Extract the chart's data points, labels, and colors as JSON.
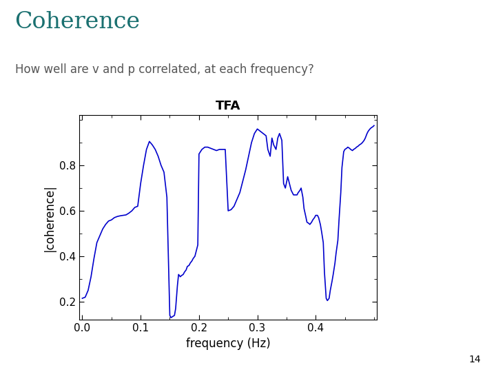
{
  "title": "Coherence",
  "subtitle": "How well are v and p correlated, at each frequency?",
  "plot_title": "TFA",
  "xlabel": "frequency (Hz)",
  "ylabel": "|coherence|",
  "title_color": "#1a7070",
  "subtitle_color": "#555555",
  "line_color": "#0000CC",
  "background_color": "#ffffff",
  "xlim": [
    -0.005,
    0.505
  ],
  "ylim": [
    0.12,
    1.02
  ],
  "xticks": [
    0,
    0.1,
    0.2,
    0.3,
    0.4
  ],
  "yticks": [
    0.2,
    0.4,
    0.6,
    0.8
  ],
  "page_number": "14",
  "x": [
    0.0,
    0.005,
    0.01,
    0.015,
    0.02,
    0.025,
    0.03,
    0.035,
    0.04,
    0.045,
    0.05,
    0.055,
    0.06,
    0.065,
    0.07,
    0.075,
    0.08,
    0.085,
    0.09,
    0.095,
    0.1,
    0.105,
    0.11,
    0.115,
    0.12,
    0.125,
    0.13,
    0.135,
    0.14,
    0.145,
    0.15,
    0.152,
    0.155,
    0.158,
    0.16,
    0.163,
    0.165,
    0.168,
    0.17,
    0.173,
    0.175,
    0.178,
    0.18,
    0.183,
    0.185,
    0.188,
    0.19,
    0.193,
    0.195,
    0.198,
    0.2,
    0.205,
    0.21,
    0.215,
    0.22,
    0.225,
    0.23,
    0.235,
    0.24,
    0.245,
    0.25,
    0.255,
    0.26,
    0.265,
    0.27,
    0.275,
    0.28,
    0.285,
    0.29,
    0.295,
    0.3,
    0.305,
    0.31,
    0.315,
    0.318,
    0.322,
    0.325,
    0.328,
    0.332,
    0.335,
    0.338,
    0.342,
    0.345,
    0.348,
    0.352,
    0.355,
    0.358,
    0.362,
    0.365,
    0.368,
    0.37,
    0.373,
    0.375,
    0.378,
    0.38,
    0.383,
    0.385,
    0.388,
    0.39,
    0.393,
    0.395,
    0.398,
    0.4,
    0.403,
    0.405,
    0.408,
    0.41,
    0.413,
    0.415,
    0.418,
    0.42,
    0.423,
    0.425,
    0.428,
    0.43,
    0.433,
    0.435,
    0.438,
    0.44,
    0.443,
    0.445,
    0.448,
    0.45,
    0.453,
    0.455,
    0.458,
    0.46,
    0.463,
    0.465,
    0.468,
    0.47,
    0.473,
    0.475,
    0.478,
    0.48,
    0.483,
    0.485,
    0.488,
    0.49,
    0.493,
    0.495,
    0.498,
    0.5
  ],
  "y": [
    0.215,
    0.22,
    0.25,
    0.31,
    0.39,
    0.46,
    0.49,
    0.52,
    0.54,
    0.555,
    0.56,
    0.57,
    0.575,
    0.578,
    0.58,
    0.582,
    0.59,
    0.6,
    0.615,
    0.62,
    0.72,
    0.8,
    0.87,
    0.905,
    0.89,
    0.87,
    0.84,
    0.8,
    0.77,
    0.66,
    0.14,
    0.13,
    0.135,
    0.14,
    0.17,
    0.27,
    0.32,
    0.31,
    0.315,
    0.32,
    0.33,
    0.34,
    0.355,
    0.36,
    0.37,
    0.38,
    0.39,
    0.4,
    0.42,
    0.45,
    0.85,
    0.87,
    0.88,
    0.88,
    0.875,
    0.87,
    0.865,
    0.87,
    0.87,
    0.87,
    0.6,
    0.605,
    0.62,
    0.65,
    0.68,
    0.73,
    0.78,
    0.84,
    0.9,
    0.94,
    0.96,
    0.95,
    0.94,
    0.93,
    0.87,
    0.84,
    0.92,
    0.89,
    0.87,
    0.92,
    0.94,
    0.91,
    0.72,
    0.7,
    0.75,
    0.72,
    0.69,
    0.67,
    0.67,
    0.67,
    0.68,
    0.69,
    0.7,
    0.66,
    0.61,
    0.575,
    0.55,
    0.545,
    0.54,
    0.55,
    0.56,
    0.57,
    0.58,
    0.58,
    0.57,
    0.54,
    0.51,
    0.46,
    0.33,
    0.215,
    0.205,
    0.215,
    0.25,
    0.29,
    0.32,
    0.37,
    0.415,
    0.47,
    0.56,
    0.68,
    0.79,
    0.86,
    0.87,
    0.875,
    0.88,
    0.875,
    0.87,
    0.865,
    0.87,
    0.875,
    0.88,
    0.885,
    0.89,
    0.895,
    0.9,
    0.91,
    0.92,
    0.94,
    0.95,
    0.96,
    0.965,
    0.97,
    0.975
  ]
}
